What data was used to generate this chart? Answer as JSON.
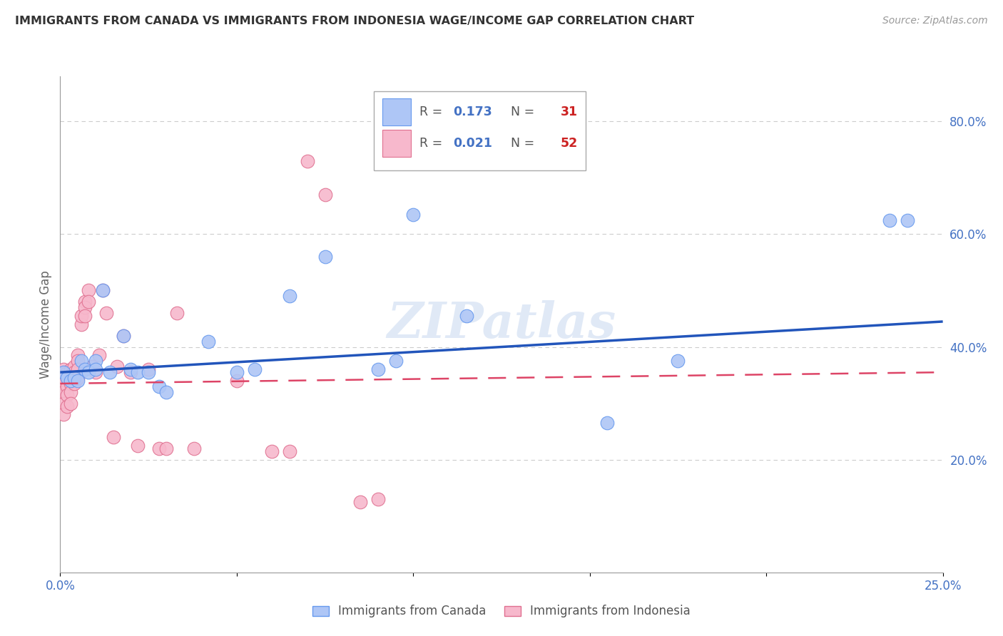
{
  "title": "IMMIGRANTS FROM CANADA VS IMMIGRANTS FROM INDONESIA WAGE/INCOME GAP CORRELATION CHART",
  "source": "Source: ZipAtlas.com",
  "ylabel": "Wage/Income Gap",
  "xlim": [
    0.0,
    0.25
  ],
  "ylim": [
    0.0,
    0.88
  ],
  "yticks_right": [
    0.2,
    0.4,
    0.6,
    0.8
  ],
  "ytick_labels_right": [
    "20.0%",
    "40.0%",
    "60.0%",
    "80.0%"
  ],
  "canada_color": "#aec6f6",
  "canada_color_edge": "#6699ee",
  "indonesia_color": "#f7b8cc",
  "indonesia_color_edge": "#e07090",
  "canada_line_color": "#2255bb",
  "indonesia_line_color": "#dd4466",
  "canada_R": 0.173,
  "canada_N": 31,
  "indonesia_R": 0.021,
  "indonesia_N": 52,
  "canada_scatter_x": [
    0.001,
    0.002,
    0.003,
    0.004,
    0.005,
    0.006,
    0.007,
    0.008,
    0.01,
    0.01,
    0.012,
    0.014,
    0.018,
    0.02,
    0.022,
    0.025,
    0.028,
    0.03,
    0.042,
    0.05,
    0.055,
    0.065,
    0.075,
    0.09,
    0.095,
    0.1,
    0.115,
    0.155,
    0.175,
    0.235,
    0.24
  ],
  "canada_scatter_y": [
    0.355,
    0.345,
    0.34,
    0.345,
    0.34,
    0.375,
    0.36,
    0.355,
    0.375,
    0.36,
    0.5,
    0.355,
    0.42,
    0.36,
    0.355,
    0.355,
    0.33,
    0.32,
    0.41,
    0.355,
    0.36,
    0.49,
    0.56,
    0.36,
    0.375,
    0.635,
    0.455,
    0.265,
    0.375,
    0.625,
    0.625
  ],
  "indonesia_scatter_x": [
    0.001,
    0.001,
    0.001,
    0.001,
    0.001,
    0.001,
    0.002,
    0.002,
    0.002,
    0.002,
    0.002,
    0.003,
    0.003,
    0.003,
    0.003,
    0.003,
    0.004,
    0.004,
    0.004,
    0.005,
    0.005,
    0.005,
    0.005,
    0.006,
    0.006,
    0.007,
    0.007,
    0.007,
    0.008,
    0.008,
    0.009,
    0.01,
    0.011,
    0.012,
    0.013,
    0.015,
    0.016,
    0.018,
    0.02,
    0.022,
    0.025,
    0.028,
    0.03,
    0.033,
    0.038,
    0.05,
    0.06,
    0.065,
    0.07,
    0.075,
    0.085,
    0.09
  ],
  "indonesia_scatter_y": [
    0.36,
    0.345,
    0.335,
    0.32,
    0.3,
    0.28,
    0.355,
    0.345,
    0.33,
    0.315,
    0.295,
    0.36,
    0.35,
    0.335,
    0.32,
    0.3,
    0.365,
    0.355,
    0.335,
    0.385,
    0.375,
    0.36,
    0.345,
    0.44,
    0.455,
    0.48,
    0.47,
    0.455,
    0.5,
    0.48,
    0.365,
    0.355,
    0.385,
    0.5,
    0.46,
    0.24,
    0.365,
    0.42,
    0.355,
    0.225,
    0.36,
    0.22,
    0.22,
    0.46,
    0.22,
    0.34,
    0.215,
    0.215,
    0.73,
    0.67,
    0.125,
    0.13
  ],
  "watermark": "ZIPatlas",
  "background_color": "#ffffff",
  "grid_color": "#cccccc",
  "title_color": "#333333",
  "axis_label_color": "#666666",
  "tick_label_color": "#4472c4"
}
